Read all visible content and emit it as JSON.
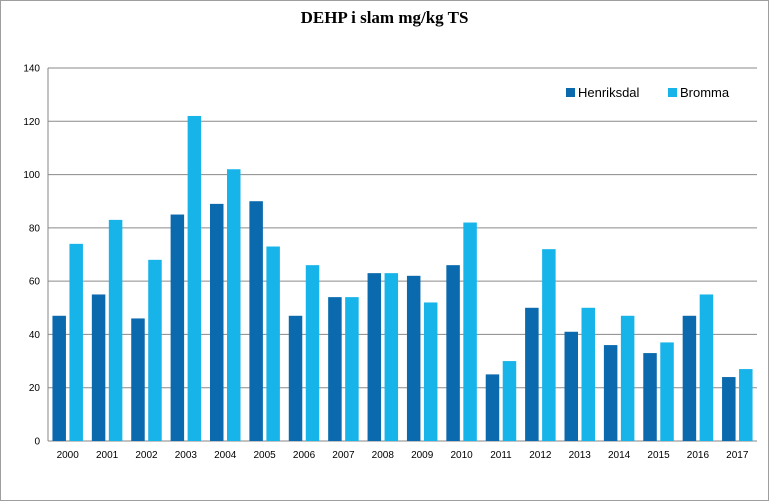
{
  "chart_data": {
    "type": "bar",
    "title": "DEHP i slam mg/kg TS",
    "xlabel": "",
    "ylabel": "",
    "ylim": [
      0,
      140
    ],
    "yticks": [
      0,
      20,
      40,
      60,
      80,
      100,
      120,
      140
    ],
    "grid": true,
    "legend_position": "top-right",
    "categories": [
      "2000",
      "2001",
      "2002",
      "2003",
      "2004",
      "2005",
      "2006",
      "2007",
      "2008",
      "2009",
      "2010",
      "2011",
      "2012",
      "2013",
      "2014",
      "2015",
      "2016",
      "2017"
    ],
    "series": [
      {
        "name": "Henriksdal",
        "color": "#0a6aad",
        "values": [
          47,
          55,
          46,
          85,
          89,
          90,
          47,
          54,
          63,
          62,
          66,
          25,
          50,
          41,
          36,
          33,
          47,
          24
        ]
      },
      {
        "name": "Bromma",
        "color": "#17b4ea",
        "values": [
          74,
          83,
          68,
          122,
          102,
          73,
          66,
          54,
          63,
          52,
          82,
          30,
          72,
          50,
          47,
          37,
          55,
          27
        ]
      }
    ]
  }
}
